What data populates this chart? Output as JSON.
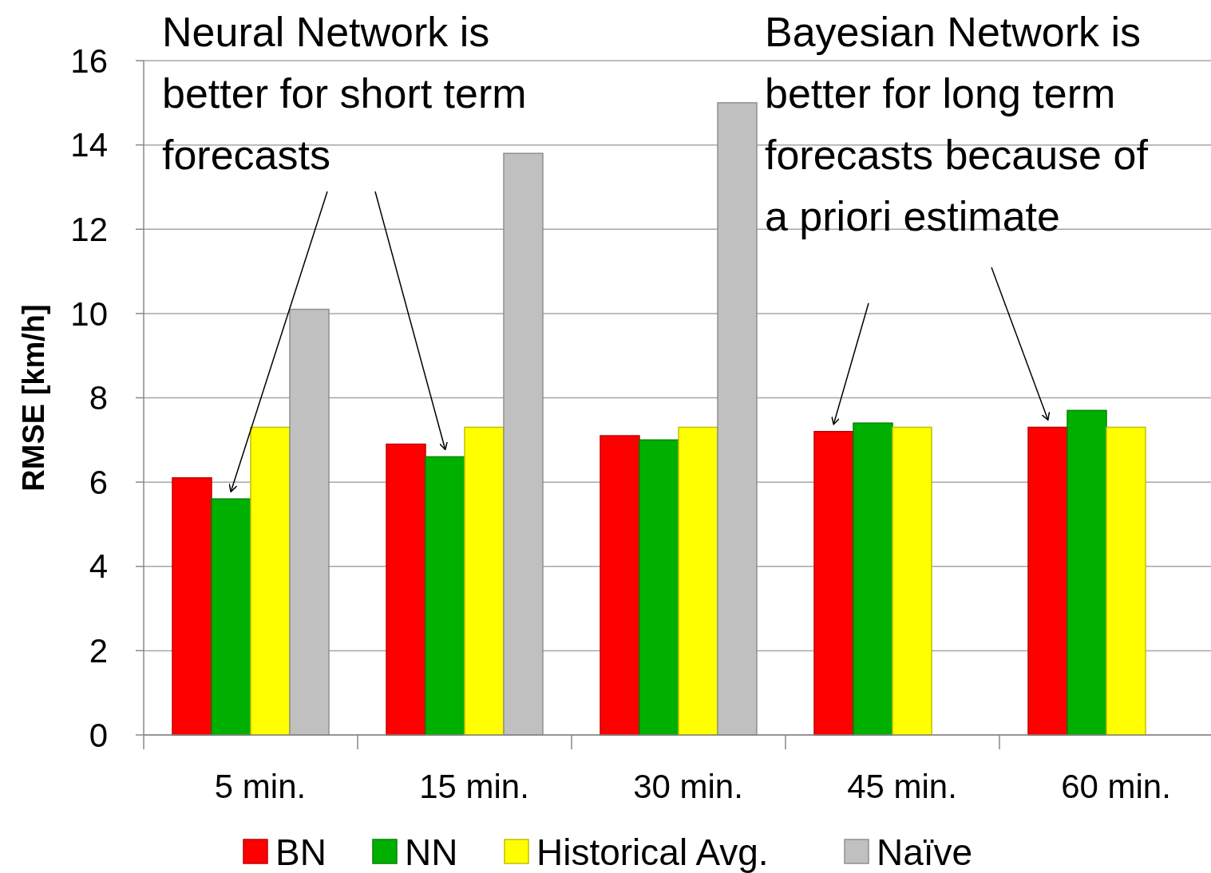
{
  "chart_data": {
    "type": "bar",
    "ylabel": "RMSE [km/h]",
    "categories": [
      "5 min.",
      "15 min.",
      "30 min.",
      "45 min.",
      "60 min."
    ],
    "series": [
      {
        "name": "BN",
        "color": "#ff0000",
        "values": [
          6.1,
          6.9,
          7.1,
          7.2,
          7.3
        ]
      },
      {
        "name": "NN",
        "color": "#00b000",
        "values": [
          5.6,
          6.6,
          7.0,
          7.4,
          7.7
        ]
      },
      {
        "name": "Historical Avg.",
        "color": "#ffff00",
        "values": [
          7.3,
          7.3,
          7.3,
          7.3,
          7.3
        ]
      },
      {
        "name": "Naïve",
        "color": "#c0c0c0",
        "values": [
          10.1,
          13.8,
          15.0,
          null,
          null
        ]
      }
    ],
    "ylim": [
      0,
      16
    ],
    "yticks": [
      0,
      2,
      4,
      6,
      8,
      10,
      12,
      14,
      16
    ],
    "grid": "y",
    "legend": "bottom",
    "annotations": [
      "Neural Network is better for short term forecasts",
      "Bayesian Network is better for long term forecasts because of a priori estimate"
    ]
  }
}
